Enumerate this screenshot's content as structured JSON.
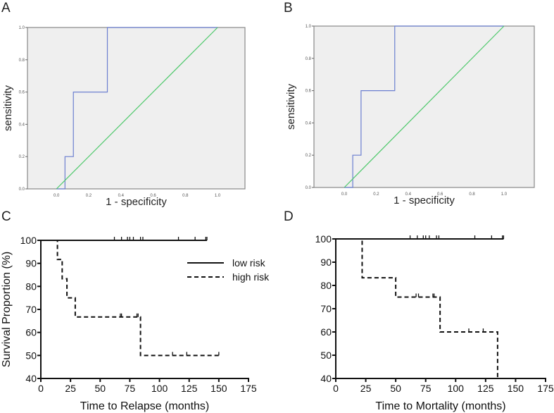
{
  "chart_data": [
    {
      "panel": "A",
      "type": "line",
      "title": "",
      "xlabel": "1 - specificity",
      "ylabel": "sensitivity",
      "xlim": [
        -0.18,
        1.17
      ],
      "ylim": [
        0,
        1
      ],
      "xticks": [
        "0.0",
        "0.2",
        "0.4",
        "0.6",
        "0.8",
        "1.0"
      ],
      "yticks": [
        "0.0",
        "0.2",
        "0.4",
        "0.6",
        "0.8",
        "1.0"
      ],
      "background": "#efefef",
      "series": [
        {
          "name": "ROC curve",
          "color": "#6b7fd0",
          "x": [
            0,
            0.053,
            0.053,
            0.105,
            0.105,
            0.316,
            0.316,
            1.0
          ],
          "y": [
            0,
            0,
            0.2,
            0.2,
            0.6,
            0.6,
            1.0,
            1.0
          ]
        },
        {
          "name": "reference line",
          "color": "#4cc86a",
          "x": [
            0,
            1
          ],
          "y": [
            0,
            1
          ]
        }
      ]
    },
    {
      "panel": "B",
      "type": "line",
      "title": "",
      "xlabel": "1 - specificity",
      "ylabel": "sensitivity",
      "xlim": [
        -0.19,
        1.19
      ],
      "ylim": [
        0,
        1
      ],
      "xticks": [
        "0.0",
        "0.2",
        "0.4",
        "0.6",
        "0.8",
        "1.0"
      ],
      "yticks": [
        "0.0",
        "0.2",
        "0.4",
        "0.6",
        "0.8",
        "1.0"
      ],
      "background": "#efefef",
      "series": [
        {
          "name": "ROC curve",
          "color": "#6b7fd0",
          "x": [
            0,
            0.053,
            0.053,
            0.105,
            0.105,
            0.316,
            0.316,
            1.0
          ],
          "y": [
            0,
            0,
            0.2,
            0.2,
            0.6,
            0.6,
            1.0,
            1.0
          ]
        },
        {
          "name": "reference line",
          "color": "#4cc86a",
          "x": [
            0,
            1
          ],
          "y": [
            0,
            1
          ]
        }
      ]
    },
    {
      "panel": "C",
      "type": "line",
      "title": "",
      "xlabel": "Time to Relapse (months)",
      "ylabel": "Survival Proportion (%)",
      "xlim": [
        0,
        175
      ],
      "ylim": [
        40,
        100
      ],
      "xticks": [
        "0",
        "25",
        "50",
        "75",
        "100",
        "125",
        "150",
        "175"
      ],
      "yticks": [
        "40",
        "50",
        "60",
        "70",
        "80",
        "90",
        "100"
      ],
      "legend": {
        "placement": "top-right",
        "entries": [
          "low risk",
          "high risk"
        ]
      },
      "series": [
        {
          "name": "low risk",
          "style": "solid",
          "steps": [
            [
              0,
              100
            ],
            [
              140,
              100
            ]
          ],
          "censored": [
            62,
            68,
            73,
            75,
            78,
            84,
            86,
            116,
            130,
            139,
            140
          ]
        },
        {
          "name": "high risk",
          "style": "dashed",
          "steps": [
            [
              0,
              100
            ],
            [
              14,
              91.7
            ],
            [
              18,
              83.3
            ],
            [
              22,
              75
            ],
            [
              29,
              66.7
            ],
            [
              84,
              50
            ],
            [
              150,
              50
            ]
          ],
          "censored": [
            67,
            68,
            81,
            82,
            111,
            123,
            150
          ]
        }
      ]
    },
    {
      "panel": "D",
      "type": "line",
      "title": "",
      "xlabel": "Time to Mortality (months)",
      "ylabel": "",
      "xlim": [
        0,
        175
      ],
      "ylim": [
        40,
        100
      ],
      "xticks": [
        "0",
        "25",
        "50",
        "75",
        "100",
        "125",
        "150",
        "175"
      ],
      "yticks": [
        "40",
        "50",
        "60",
        "70",
        "80",
        "90",
        "100"
      ],
      "series": [
        {
          "name": "low risk",
          "style": "solid",
          "steps": [
            [
              0,
              100
            ],
            [
              140,
              100
            ]
          ],
          "censored": [
            62,
            68,
            73,
            75,
            78,
            84,
            86,
            116,
            130,
            139,
            140
          ]
        },
        {
          "name": "high risk",
          "style": "dashed",
          "steps": [
            [
              0,
              100
            ],
            [
              22,
              83.3
            ],
            [
              50,
              75
            ],
            [
              87,
              60
            ],
            [
              135,
              40
            ]
          ],
          "censored": [
            67,
            69,
            81,
            82,
            111,
            123
          ]
        }
      ]
    }
  ]
}
